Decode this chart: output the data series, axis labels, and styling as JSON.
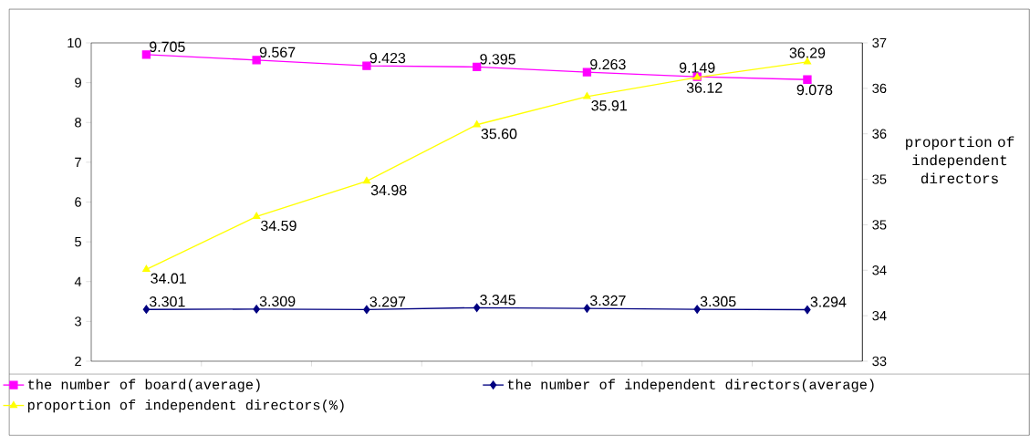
{
  "chart_data": {
    "type": "line",
    "y2label": "proportion of independent directors",
    "categories": [
      null,
      null,
      null,
      null,
      null,
      null,
      null
    ],
    "series": [
      {
        "name": "the number of board(average)",
        "color": "#ff00ff",
        "marker": "square",
        "values": [
          9.705,
          9.567,
          9.423,
          9.395,
          9.263,
          9.149,
          9.078
        ],
        "value_labels": [
          "9.705",
          "9.567",
          "9.423",
          "9.395",
          "9.263",
          "9.149",
          "9.078"
        ]
      },
      {
        "name": "the number of independent directors(average)",
        "color": "#000080",
        "marker": "diamond",
        "values": [
          3.301,
          3.309,
          3.297,
          3.345,
          3.327,
          3.305,
          3.294
        ],
        "value_labels": [
          "3.301",
          "3.309",
          "3.297",
          "3.345",
          "3.327",
          "3.305",
          "3.294"
        ]
      },
      {
        "name": "proportion of  independent directors(%)",
        "color": "#ffff00",
        "marker": "triangle",
        "axis": "y2",
        "values": [
          34.01,
          34.59,
          34.98,
          35.6,
          35.91,
          36.12,
          36.29
        ],
        "value_labels": [
          "34.01",
          "34.59",
          "34.98",
          "35.60",
          "35.91",
          "36.12",
          "36.29"
        ]
      }
    ],
    "ylim": [
      2,
      10
    ],
    "yticks": [
      2,
      3,
      4,
      5,
      6,
      7,
      8,
      9,
      10
    ],
    "y2lim": [
      33,
      36.5
    ],
    "y2ticks": [
      {
        "value": 33,
        "label": "33"
      },
      {
        "value": 33.5,
        "label": "34"
      },
      {
        "value": 34,
        "label": "34"
      },
      {
        "value": 34.5,
        "label": "35"
      },
      {
        "value": 35,
        "label": "35"
      },
      {
        "value": 35.5,
        "label": "36"
      },
      {
        "value": 36,
        "label": "36"
      },
      {
        "value": 36.5,
        "label": "37"
      }
    ],
    "legend": "bottom",
    "grid": false,
    "tick_labels": "y"
  }
}
